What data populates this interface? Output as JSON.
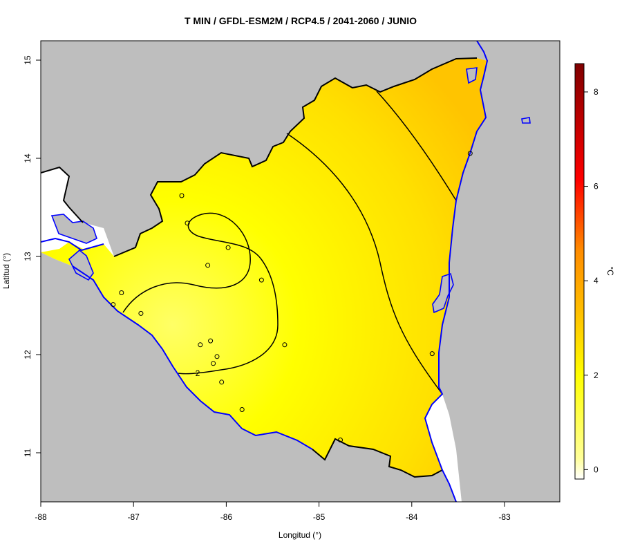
{
  "title": "T MIN / GFDL-ESM2M / RCP4.5 / 2041-2060 / JUNIO",
  "x_axis": {
    "label": "Longitud (°)",
    "ticks": [
      "-88",
      "-87",
      "-86",
      "-85",
      "-84",
      "-83"
    ],
    "range": [
      -88,
      -82.4
    ]
  },
  "y_axis": {
    "label": "Latitud (°)",
    "ticks": [
      "11",
      "12",
      "13",
      "14",
      "15"
    ],
    "range": [
      10.5,
      15.2
    ]
  },
  "colorbar": {
    "unit": "°C",
    "ticks": [
      "0",
      "2",
      "4",
      "6",
      "8"
    ],
    "range": [
      -0.2,
      8.6
    ],
    "colors": [
      "#ffffff",
      "#ffff00",
      "#ffa500",
      "#ff0000",
      "#8b0000"
    ]
  },
  "contour_labels": [
    "2"
  ],
  "colors": {
    "land_outside": "#bebebe",
    "water": "#8899cc",
    "coastline": "#0000ff",
    "borders": "#000000",
    "field_low": "#ffff55",
    "field_mid": "#ffee00",
    "field_high": "#ffc800"
  },
  "stations": [
    [
      -86.48,
      13.62
    ],
    [
      -86.42,
      13.34
    ],
    [
      -85.98,
      13.09
    ],
    [
      -86.2,
      12.91
    ],
    [
      -85.62,
      12.76
    ],
    [
      -87.13,
      12.63
    ],
    [
      -87.22,
      12.51
    ],
    [
      -86.92,
      12.42
    ],
    [
      -86.17,
      12.14
    ],
    [
      -86.28,
      12.1
    ],
    [
      -86.1,
      11.98
    ],
    [
      -86.14,
      11.91
    ],
    [
      -85.37,
      12.1
    ],
    [
      -86.05,
      11.72
    ],
    [
      -85.83,
      11.44
    ],
    [
      -84.77,
      11.13
    ],
    [
      -83.78,
      12.01
    ],
    [
      -83.37,
      14.05
    ]
  ]
}
